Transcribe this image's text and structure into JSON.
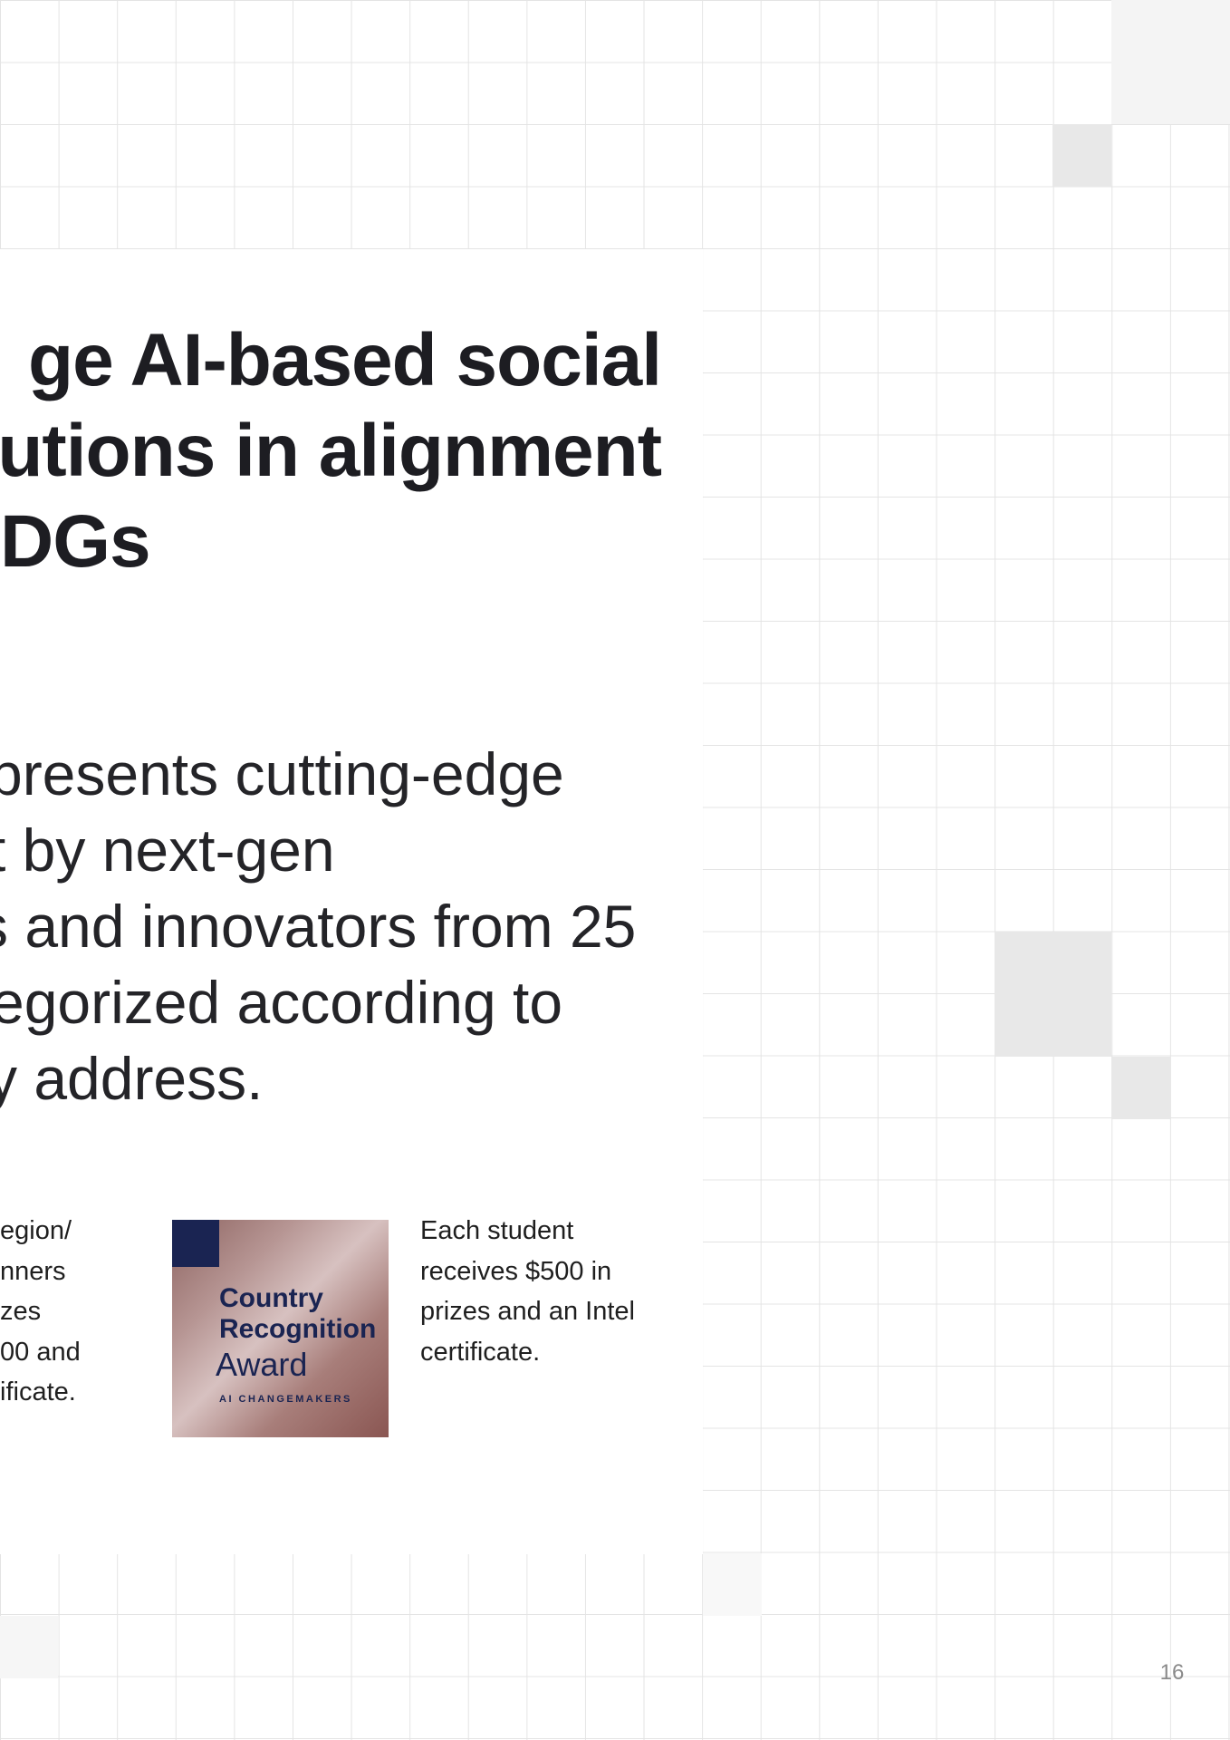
{
  "headline": {
    "lines": [
      "ge AI-based social",
      "utions in alignment",
      "DGs"
    ]
  },
  "lead": {
    "lines": [
      "presents cutting-edge",
      "t by next-gen",
      "s and innovators from 25",
      "egorized according to",
      "y address."
    ]
  },
  "left_note": {
    "lines": [
      "egion/",
      "nners",
      "zes",
      "00 and",
      "ificate."
    ]
  },
  "badge": {
    "line1": "Country",
    "line2": "Recognition",
    "line3": "Award",
    "footer": "AI CHANGEMAKERS",
    "colors": {
      "navy": "#1a2452",
      "rose": "#b69593"
    }
  },
  "right_note": {
    "lines": [
      "Each student",
      "receives $500 in",
      "prizes and an Intel",
      "certificate."
    ]
  },
  "page_number": "16"
}
